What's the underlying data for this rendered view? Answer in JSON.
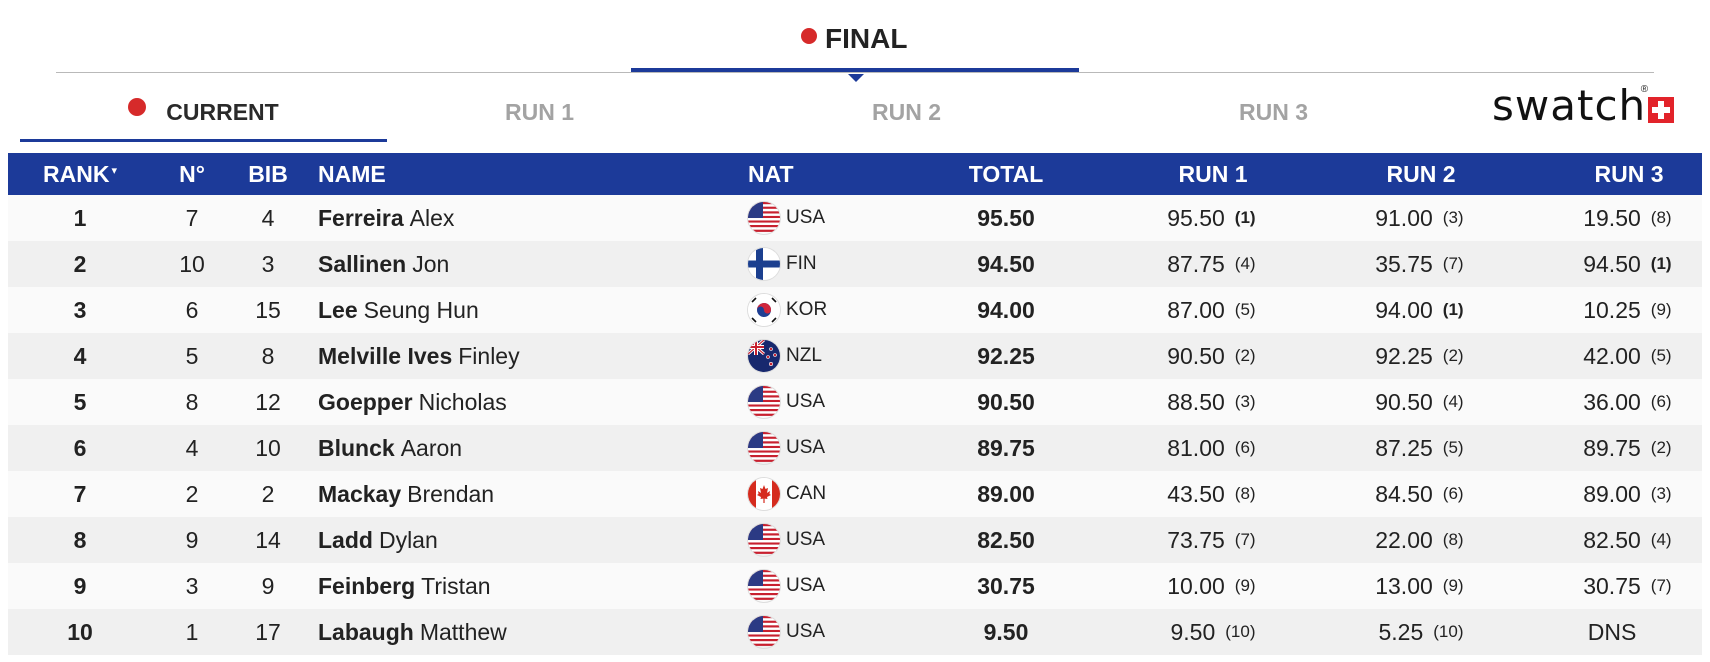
{
  "phase": {
    "label": "FINAL",
    "active": true
  },
  "tabs": [
    {
      "label": "CURRENT",
      "active": true,
      "live": true
    },
    {
      "label": "RUN 1",
      "active": false
    },
    {
      "label": "RUN 2",
      "active": false
    },
    {
      "label": "RUN 3",
      "active": false
    }
  ],
  "sponsor": {
    "name": "swatch",
    "reg": "®",
    "icon": "swiss-cross-icon",
    "color": "#e2232a"
  },
  "colors": {
    "header_bg": "#1c3a99",
    "live_dot": "#d62a2a"
  },
  "columns": {
    "rank": "RANK",
    "rank_sort": "▾",
    "no": "N°",
    "bib": "BIB",
    "name": "NAME",
    "nat": "NAT",
    "total": "TOTAL",
    "run1": "RUN 1",
    "run2": "RUN 2",
    "run3": "RUN 3"
  },
  "rows": [
    {
      "rank": "1",
      "no": "7",
      "bib": "4",
      "last": "Ferreira",
      "first": "Alex",
      "nat": "USA",
      "flag": "usa-flag-icon",
      "total": "95.50",
      "run1": "95.50",
      "run1_rank": "(1)",
      "run2": "91.00",
      "run2_rank": "(3)",
      "run3": "19.50",
      "run3_rank": "(8)"
    },
    {
      "rank": "2",
      "no": "10",
      "bib": "3",
      "last": "Sallinen",
      "first": "Jon",
      "nat": "FIN",
      "flag": "finland-flag-icon",
      "total": "94.50",
      "run1": "87.75",
      "run1_rank": "(4)",
      "run2": "35.75",
      "run2_rank": "(7)",
      "run3": "94.50",
      "run3_rank": "(1)"
    },
    {
      "rank": "3",
      "no": "6",
      "bib": "15",
      "last": "Lee",
      "first": "Seung Hun",
      "nat": "KOR",
      "flag": "korea-flag-icon",
      "total": "94.00",
      "run1": "87.00",
      "run1_rank": "(5)",
      "run2": "94.00",
      "run2_rank": "(1)",
      "run3": "10.25",
      "run3_rank": "(9)"
    },
    {
      "rank": "4",
      "no": "5",
      "bib": "8",
      "last": "Melville Ives",
      "first": "Finley",
      "nat": "NZL",
      "flag": "new-zealand-flag-icon",
      "total": "92.25",
      "run1": "90.50",
      "run1_rank": "(2)",
      "run2": "92.25",
      "run2_rank": "(2)",
      "run3": "42.00",
      "run3_rank": "(5)"
    },
    {
      "rank": "5",
      "no": "8",
      "bib": "12",
      "last": "Goepper",
      "first": "Nicholas",
      "nat": "USA",
      "flag": "usa-flag-icon",
      "total": "90.50",
      "run1": "88.50",
      "run1_rank": "(3)",
      "run2": "90.50",
      "run2_rank": "(4)",
      "run3": "36.00",
      "run3_rank": "(6)"
    },
    {
      "rank": "6",
      "no": "4",
      "bib": "10",
      "last": "Blunck",
      "first": "Aaron",
      "nat": "USA",
      "flag": "usa-flag-icon",
      "total": "89.75",
      "run1": "81.00",
      "run1_rank": "(6)",
      "run2": "87.25",
      "run2_rank": "(5)",
      "run3": "89.75",
      "run3_rank": "(2)"
    },
    {
      "rank": "7",
      "no": "2",
      "bib": "2",
      "last": "Mackay",
      "first": "Brendan",
      "nat": "CAN",
      "flag": "canada-flag-icon",
      "total": "89.00",
      "run1": "43.50",
      "run1_rank": "(8)",
      "run2": "84.50",
      "run2_rank": "(6)",
      "run3": "89.00",
      "run3_rank": "(3)"
    },
    {
      "rank": "8",
      "no": "9",
      "bib": "14",
      "last": "Ladd",
      "first": "Dylan",
      "nat": "USA",
      "flag": "usa-flag-icon",
      "total": "82.50",
      "run1": "73.75",
      "run1_rank": "(7)",
      "run2": "22.00",
      "run2_rank": "(8)",
      "run3": "82.50",
      "run3_rank": "(4)"
    },
    {
      "rank": "9",
      "no": "3",
      "bib": "9",
      "last": "Feinberg",
      "first": "Tristan",
      "nat": "USA",
      "flag": "usa-flag-icon",
      "total": "30.75",
      "run1": "10.00",
      "run1_rank": "(9)",
      "run2": "13.00",
      "run2_rank": "(9)",
      "run3": "30.75",
      "run3_rank": "(7)"
    },
    {
      "rank": "10",
      "no": "1",
      "bib": "17",
      "last": "Labaugh",
      "first": "Matthew",
      "nat": "USA",
      "flag": "usa-flag-icon",
      "total": "9.50",
      "run1": "9.50",
      "run1_rank": "(10)",
      "run2": "5.25",
      "run2_rank": "(10)",
      "run3": "DNS",
      "run3_rank": ""
    }
  ]
}
